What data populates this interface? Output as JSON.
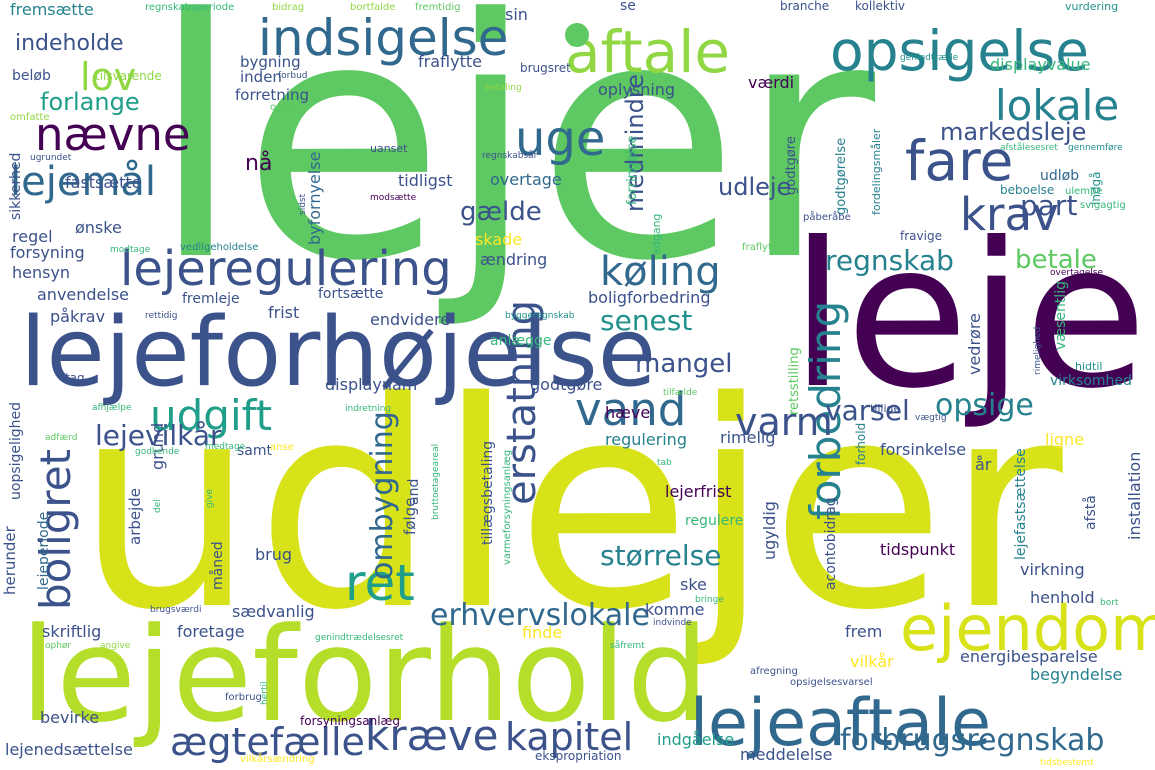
{
  "colors": {
    "background": "#ffffff",
    "palette": {
      "dark_purple": "#440154",
      "indigo": "#3b528b",
      "blue": "#31688e",
      "teal_blue": "#26828e",
      "teal": "#21918c",
      "sea_green": "#1f9e89",
      "green": "#35b779",
      "bright_green": "#5ec962",
      "lime": "#90d743",
      "yellow_green": "#b5de2b",
      "yellow": "#d8e219",
      "gold": "#fde725"
    }
  },
  "words": [
    {
      "text": "lejer",
      "color": "#5ec962"
    },
    {
      "text": "udlejer",
      "color": "#d8e219"
    },
    {
      "text": "leje",
      "color": "#440154"
    },
    {
      "text": "lejeforhold",
      "color": "#b5de2b"
    },
    {
      "text": "lejeforhøjelse",
      "color": "#3b528b"
    },
    {
      "text": "aftale",
      "color": "#90d743"
    },
    {
      "text": "opsigelse",
      "color": "#26828e"
    },
    {
      "text": "indsigelse",
      "color": "#31688e"
    },
    {
      "text": "lejeaftale",
      "color": "#31688e"
    },
    {
      "text": "ejendom",
      "color": "#d8e219"
    },
    {
      "text": "lejeregulering",
      "color": "#3b528b"
    },
    {
      "text": "fare",
      "color": "#3b528b"
    },
    {
      "text": "krav",
      "color": "#3b528b"
    },
    {
      "text": "uge",
      "color": "#31688e"
    },
    {
      "text": "lokale",
      "color": "#26828e"
    },
    {
      "text": "nævne",
      "color": "#440154"
    },
    {
      "text": "lejemål",
      "color": "#31688e"
    },
    {
      "text": "lov",
      "color": "#90d743"
    },
    {
      "text": "køling",
      "color": "#31688e"
    },
    {
      "text": "boligret",
      "color": "#3b528b"
    },
    {
      "text": "udgift",
      "color": "#1f9e89"
    },
    {
      "text": "vand",
      "color": "#31688e"
    },
    {
      "text": "ret",
      "color": "#1f9e89"
    },
    {
      "text": "kræve",
      "color": "#3b528b"
    },
    {
      "text": "kapitel",
      "color": "#3b528b"
    },
    {
      "text": "forbrugsregnskab",
      "color": "#31688e"
    },
    {
      "text": "ægtefælle",
      "color": "#3b528b"
    },
    {
      "text": "forbedring",
      "color": "#26828e"
    },
    {
      "text": "varm",
      "color": "#3b528b"
    },
    {
      "text": "erstatning",
      "color": "#3b528b"
    },
    {
      "text": "erhvervslokale",
      "color": "#31688e"
    },
    {
      "text": "lejevilkår",
      "color": "#3b528b"
    },
    {
      "text": "markedsleje",
      "color": "#3b528b"
    },
    {
      "text": "regnskab",
      "color": "#26828e"
    },
    {
      "text": "senest",
      "color": "#21918c"
    },
    {
      "text": "mangel",
      "color": "#3b528b"
    },
    {
      "text": "varsel",
      "color": "#3b528b"
    },
    {
      "text": "opsige",
      "color": "#26828e"
    },
    {
      "text": "ombygning",
      "color": "#31688e"
    },
    {
      "text": "størrelse",
      "color": "#26828e"
    },
    {
      "text": "part",
      "color": "#3b528b"
    },
    {
      "text": "betale",
      "color": "#5ec962"
    },
    {
      "text": "gælde",
      "color": "#3b528b"
    },
    {
      "text": "udleje",
      "color": "#3b528b"
    },
    {
      "text": "medmindre",
      "color": "#3b528b"
    },
    {
      "text": "forlange",
      "color": "#1f9e89"
    },
    {
      "text": "indeholde",
      "color": "#3b528b"
    },
    {
      "text": "fremsætte",
      "color": "#26828e"
    },
    {
      "text": "regnskabsperiode",
      "color": "#35b779"
    },
    {
      "text": "bidrag",
      "color": "#90d743"
    },
    {
      "text": "bortfalde",
      "color": "#90d743"
    },
    {
      "text": "fremtidig",
      "color": "#5ec962"
    },
    {
      "text": "sin",
      "color": "#3b528b"
    },
    {
      "text": "se",
      "color": "#3b528b"
    },
    {
      "text": "branche",
      "color": "#3b528b"
    },
    {
      "text": "kollektiv",
      "color": "#3b528b"
    },
    {
      "text": "vurdering",
      "color": "#21918c"
    },
    {
      "text": "beløb",
      "color": "#3b528b"
    },
    {
      "text": "tilsvarende",
      "color": "#90d743"
    },
    {
      "text": "bygning",
      "color": "#3b528b"
    },
    {
      "text": "fraflytte",
      "color": "#3b528b"
    },
    {
      "text": "brugsret",
      "color": "#3b528b"
    },
    {
      "text": "oplysning",
      "color": "#3b528b"
    },
    {
      "text": "værdi",
      "color": "#440154"
    },
    {
      "text": "displayvalue",
      "color": "#35b779"
    },
    {
      "text": "genindtræde",
      "color": "#21918c"
    },
    {
      "text": "omfatte",
      "color": "#90d743"
    },
    {
      "text": "forbud",
      "color": "#3b528b"
    },
    {
      "text": "ophold",
      "color": "#5ec962"
    },
    {
      "text": "betaling",
      "color": "#90d743"
    },
    {
      "text": "inden",
      "color": "#3b528b"
    },
    {
      "text": "forretning",
      "color": "#3b528b"
    },
    {
      "text": "godtgørelse",
      "color": "#26828e"
    },
    {
      "text": "fordelingsmåler",
      "color": "#26828e"
    },
    {
      "text": "afstålesesret",
      "color": "#35b779"
    },
    {
      "text": "gennemføre",
      "color": "#21918c"
    },
    {
      "text": "indgå",
      "color": "#21918c"
    },
    {
      "text": "sikkerhed",
      "color": "#3b528b"
    },
    {
      "text": "ugrundet",
      "color": "#3b528b"
    },
    {
      "text": "uanset",
      "color": "#3b528b"
    },
    {
      "text": "regnskabsår",
      "color": "#3b528b"
    },
    {
      "text": "forringelse",
      "color": "#35b779"
    },
    {
      "text": "udløb",
      "color": "#31688e"
    },
    {
      "text": "nå",
      "color": "#440154"
    },
    {
      "text": "tidligst",
      "color": "#3b528b"
    },
    {
      "text": "overtage",
      "color": "#31688e"
    },
    {
      "text": "byfornyelse",
      "color": "#31688e"
    },
    {
      "text": "sidst",
      "color": "#3b528b"
    },
    {
      "text": "modsætte",
      "color": "#440154"
    },
    {
      "text": "fastsætte",
      "color": "#3b528b"
    },
    {
      "text": "godtgøre",
      "color": "#3b528b"
    },
    {
      "text": "beboelse",
      "color": "#26828e"
    },
    {
      "text": "ulempe",
      "color": "#35b779"
    },
    {
      "text": "svigagtig",
      "color": "#35b779"
    },
    {
      "text": "påberåbe",
      "color": "#3b528b"
    },
    {
      "text": "fravige",
      "color": "#3b528b"
    },
    {
      "text": "adgang",
      "color": "#35b779"
    },
    {
      "text": "regel",
      "color": "#3b528b"
    },
    {
      "text": "ønske",
      "color": "#3b528b"
    },
    {
      "text": "forsyning",
      "color": "#3b528b"
    },
    {
      "text": "modtage",
      "color": "#35b779"
    },
    {
      "text": "vedligeholdelse",
      "color": "#26828e"
    },
    {
      "text": "skade",
      "color": "#fde725"
    },
    {
      "text": "fraflytning",
      "color": "#5ec962"
    },
    {
      "text": "overtagelse",
      "color": "#440154"
    },
    {
      "text": "hensyn",
      "color": "#3b528b"
    },
    {
      "text": "ændring",
      "color": "#3b528b"
    },
    {
      "text": "anvendelse",
      "color": "#3b528b"
    },
    {
      "text": "fortsætte",
      "color": "#3b528b"
    },
    {
      "text": "fremleje",
      "color": "#3b528b"
    },
    {
      "text": "frist",
      "color": "#3b528b"
    },
    {
      "text": "boligforbedring",
      "color": "#3b528b"
    },
    {
      "text": "påkrav",
      "color": "#3b528b"
    },
    {
      "text": "rettidig",
      "color": "#3b528b"
    },
    {
      "text": "endvidere",
      "color": "#3b528b"
    },
    {
      "text": "byggeregnskab",
      "color": "#21918c"
    },
    {
      "text": "anlægge",
      "color": "#35b779"
    },
    {
      "text": "retsstilling",
      "color": "#5ec962"
    },
    {
      "text": "væsentlig",
      "color": "#35b779"
    },
    {
      "text": "hidtil",
      "color": "#21918c"
    },
    {
      "text": "rimelighed",
      "color": "#3b528b"
    },
    {
      "text": "vedrøre",
      "color": "#3b528b"
    },
    {
      "text": "uopsigelighed",
      "color": "#3b528b"
    },
    {
      "text": "tag",
      "color": "#3b528b"
    },
    {
      "text": "displaynam",
      "color": "#3b528b"
    },
    {
      "text": "godtgøre2",
      "color": "#3b528b"
    },
    {
      "text": "stille",
      "color": "#440154"
    },
    {
      "text": "virksomhed",
      "color": "#26828e"
    },
    {
      "text": "afhjælpe",
      "color": "#35b779"
    },
    {
      "text": "indretning",
      "color": "#35b779"
    },
    {
      "text": "tilfælde",
      "color": "#5ec962"
    },
    {
      "text": "tillige",
      "color": "#3b528b"
    },
    {
      "text": "vægtig",
      "color": "#3b528b"
    },
    {
      "text": "ligne",
      "color": "#fde725"
    },
    {
      "text": "hæve",
      "color": "#440154"
    },
    {
      "text": "forhold",
      "color": "#26828e"
    },
    {
      "text": "rimelig",
      "color": "#3b528b"
    },
    {
      "text": "regulering",
      "color": "#26828e"
    },
    {
      "text": "forsinkelse",
      "color": "#3b528b"
    },
    {
      "text": "år",
      "color": "#3b528b"
    },
    {
      "text": "and",
      "color": "#3b528b"
    },
    {
      "text": "samt",
      "color": "#3b528b"
    },
    {
      "text": "anse",
      "color": "#fde725"
    },
    {
      "text": "bruttoetageareal",
      "color": "#35b779"
    },
    {
      "text": "grund",
      "color": "#3b528b"
    },
    {
      "text": "adfærd",
      "color": "#5ec962"
    },
    {
      "text": "godkende",
      "color": "#35b779"
    },
    {
      "text": "medtage",
      "color": "#35b779"
    },
    {
      "text": "tab",
      "color": "#35b779"
    },
    {
      "text": "installation",
      "color": "#3b528b"
    },
    {
      "text": "lejerfrist",
      "color": "#440154"
    },
    {
      "text": "lejefastsættelse",
      "color": "#26828e"
    },
    {
      "text": "afstå",
      "color": "#3b528b"
    },
    {
      "text": "herunder",
      "color": "#3b528b"
    },
    {
      "text": "arbejde",
      "color": "#3b528b"
    },
    {
      "text": "følge",
      "color": "#3b528b"
    },
    {
      "text": "tillægsbetaling",
      "color": "#3b528b"
    },
    {
      "text": "varmeforsyningsanlæg",
      "color": "#35b779"
    },
    {
      "text": "regulere",
      "color": "#35b779"
    },
    {
      "text": "tidspunkt",
      "color": "#440154"
    },
    {
      "text": "lejeperiode",
      "color": "#31688e"
    },
    {
      "text": "måned",
      "color": "#3b528b"
    },
    {
      "text": "brug",
      "color": "#3b528b"
    },
    {
      "text": "give",
      "color": "#35b779"
    },
    {
      "text": "del",
      "color": "#35b779"
    },
    {
      "text": "ske",
      "color": "#3b528b"
    },
    {
      "text": "bringe",
      "color": "#35b779"
    },
    {
      "text": "ugyldig",
      "color": "#3b528b"
    },
    {
      "text": "acontobidrag",
      "color": "#3b528b"
    },
    {
      "text": "virkning",
      "color": "#3b528b"
    },
    {
      "text": "henhold",
      "color": "#3b528b"
    },
    {
      "text": "bort",
      "color": "#35b779"
    },
    {
      "text": "brugsværdi",
      "color": "#3b528b"
    },
    {
      "text": "sædvanlig",
      "color": "#3b528b"
    },
    {
      "text": "komme",
      "color": "#3b528b"
    },
    {
      "text": "indvinde",
      "color": "#3b528b"
    },
    {
      "text": "skriftlig",
      "color": "#3b528b"
    },
    {
      "text": "foretage",
      "color": "#3b528b"
    },
    {
      "text": "genindtrædelsesret",
      "color": "#35b779"
    },
    {
      "text": "finde",
      "color": "#fde725"
    },
    {
      "text": "såfremt",
      "color": "#35b779"
    },
    {
      "text": "frem",
      "color": "#3b528b"
    },
    {
      "text": "energibesparelse",
      "color": "#3b528b"
    },
    {
      "text": "ophør",
      "color": "#5ec962"
    },
    {
      "text": "angive",
      "color": "#90d743"
    },
    {
      "text": "vilkår",
      "color": "#fde725"
    },
    {
      "text": "begyndelse",
      "color": "#26828e"
    },
    {
      "text": "afregning",
      "color": "#3b528b"
    },
    {
      "text": "opsigelsesvarsel",
      "color": "#3b528b"
    },
    {
      "text": "forbrug",
      "color": "#3b528b"
    },
    {
      "text": "hertil",
      "color": "#35b779"
    },
    {
      "text": "bevirke",
      "color": "#3b528b"
    },
    {
      "text": "forsyningsanlæg",
      "color": "#440154"
    },
    {
      "text": "lejenedsættelse",
      "color": "#3b528b"
    },
    {
      "text": "vilkårsændring",
      "color": "#fde725"
    },
    {
      "text": "ekspropriation",
      "color": "#3b528b"
    },
    {
      "text": "indgåelse",
      "color": "#1f9e89"
    },
    {
      "text": "meddelelse",
      "color": "#3b528b"
    },
    {
      "text": "tidsbestemt",
      "color": "#fde725"
    }
  ]
}
